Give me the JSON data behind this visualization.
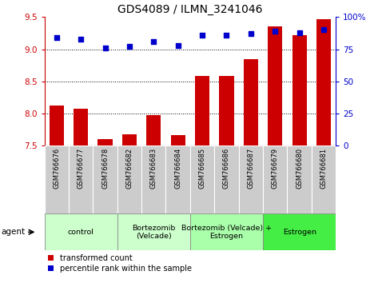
{
  "title": "GDS4089 / ILMN_3241046",
  "samples": [
    "GSM766676",
    "GSM766677",
    "GSM766678",
    "GSM766682",
    "GSM766683",
    "GSM766684",
    "GSM766685",
    "GSM766686",
    "GSM766687",
    "GSM766679",
    "GSM766680",
    "GSM766681"
  ],
  "bar_values": [
    8.12,
    8.07,
    7.6,
    7.68,
    7.97,
    7.67,
    8.58,
    8.58,
    8.85,
    9.35,
    9.22,
    9.47
  ],
  "dot_values": [
    84,
    83,
    76,
    77,
    81,
    78,
    86,
    86,
    87,
    89,
    88,
    90
  ],
  "groups": [
    {
      "label": "control",
      "start": 0,
      "end": 2,
      "color": "#ccffcc"
    },
    {
      "label": "Bortezomib\n(Velcade)",
      "start": 3,
      "end": 5,
      "color": "#ccffcc"
    },
    {
      "label": "Bortezomib (Velcade) +\nEstrogen",
      "start": 6,
      "end": 8,
      "color": "#aaffaa"
    },
    {
      "label": "Estrogen",
      "start": 9,
      "end": 11,
      "color": "#44ee44"
    }
  ],
  "ylim_left": [
    7.5,
    9.5
  ],
  "ylim_right": [
    0,
    100
  ],
  "bar_color": "#cc0000",
  "dot_color": "#0000cc",
  "background_color": "#ffffff",
  "legend_items": [
    "transformed count",
    "percentile rank within the sample"
  ],
  "agent_label": "agent",
  "bar_bottom": 7.5,
  "left_tick_color": "#cc0000",
  "right_tick_color": "#0000cc",
  "sample_box_color": "#cccccc",
  "grid_yticks": [
    9.0,
    8.5,
    8.0
  ],
  "left_yticks": [
    7.5,
    8.0,
    8.5,
    9.0,
    9.5
  ],
  "right_yticks": [
    0,
    25,
    50,
    75,
    100
  ],
  "right_yticklabels": [
    "0",
    "25",
    "50",
    "75",
    "100%"
  ]
}
